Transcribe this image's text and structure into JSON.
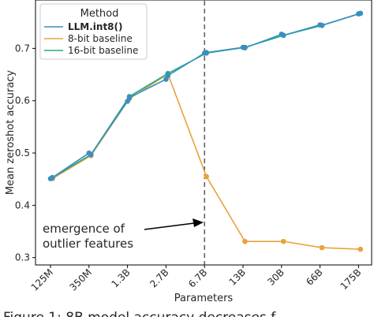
{
  "chart_data": {
    "type": "line",
    "xlabel": "Parameters",
    "ylabel": "Mean zeroshot accuracy",
    "categories": [
      "125M",
      "350M",
      "1.3B",
      "2.7B",
      "6.7B",
      "13B",
      "30B",
      "66B",
      "175B"
    ],
    "ylim": [
      0.3,
      0.77
    ],
    "yticks": [
      "0.3",
      "0.4",
      "0.5",
      "0.6",
      "0.7"
    ],
    "grid": false,
    "legend": {
      "title": "Method",
      "placement": "top-left"
    },
    "series": [
      {
        "name": "LLM.int8()",
        "color": "#3a8fc0",
        "x": [
          0,
          0.05,
          1,
          1.05,
          2,
          2.05,
          3,
          3.05,
          4,
          4.05,
          5,
          5.05,
          6,
          6.05,
          7,
          7.05,
          8,
          8.05
        ],
        "values": [
          0.451,
          0.453,
          0.5,
          0.497,
          0.599,
          0.606,
          0.641,
          0.648,
          0.691,
          0.692,
          0.702,
          0.701,
          0.727,
          0.725,
          0.745,
          0.744,
          0.766,
          0.767
        ]
      },
      {
        "name": "8-bit baseline",
        "color": "#e8a33d",
        "x": [
          0.05,
          1.05,
          2.05,
          3.05,
          4.05,
          5.05,
          6.05,
          7.05,
          8.05
        ],
        "values": [
          0.451,
          0.495,
          0.604,
          0.651,
          0.455,
          0.331,
          0.331,
          0.319,
          0.316
        ]
      },
      {
        "name": "16-bit baseline",
        "color": "#24a88a",
        "x": [
          0.05,
          1.05,
          2.05,
          3.05,
          4.05,
          5.05,
          6.05,
          7.05,
          8.05
        ],
        "values": [
          0.453,
          0.497,
          0.608,
          0.652,
          0.691,
          0.702,
          0.725,
          0.744,
          0.767
        ]
      }
    ],
    "vline": {
      "x": 4.0,
      "style": "dashed"
    },
    "annotation": {
      "lines": [
        "emergence of",
        "outlier features"
      ],
      "arrow_target_x": 4.0
    },
    "caption_fragment": "Figure 1: 8B model accuracy decreases f..."
  }
}
